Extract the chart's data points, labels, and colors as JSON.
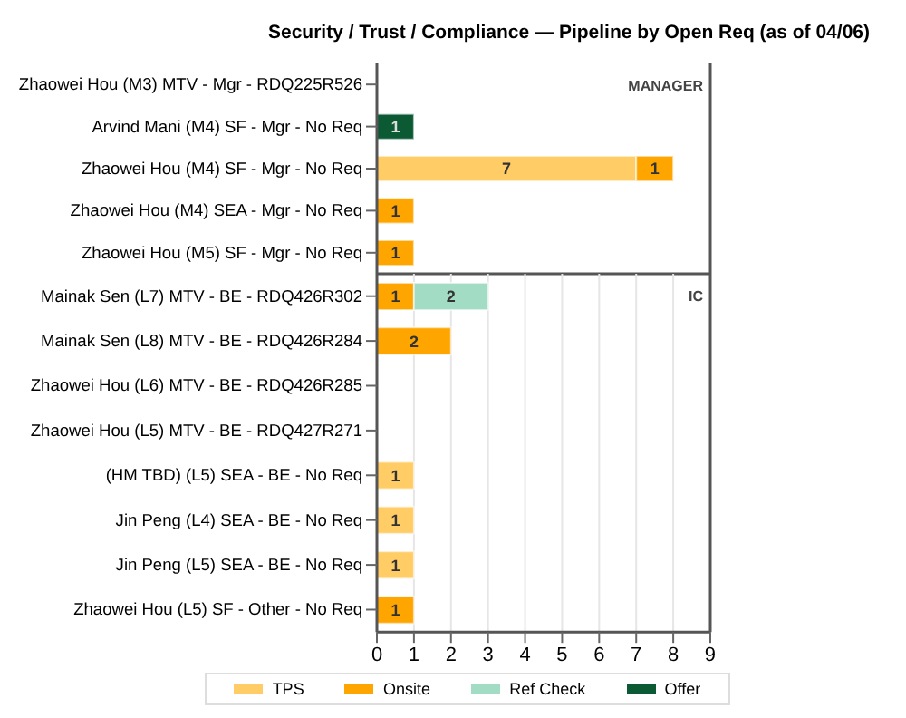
{
  "chart_data": [
    {
      "type": "bar",
      "orientation": "horizontal",
      "stacked": true,
      "title": "Security / Trust / Compliance — Pipeline by Open Req (as of 04/06)",
      "categories": [
        "Zhaowei Hou (M3) MTV - Mgr - RDQ225R526",
        "Arvind Mani (M4) SF - Mgr - No Req",
        "Zhaowei Hou (M4) SF - Mgr - No Req",
        "Zhaowei Hou (M4) SEA - Mgr - No Req",
        "Zhaowei Hou (M5) SF - Mgr - No Req"
      ],
      "series": [
        {
          "color": "#ffcc66",
          "values": [
            null,
            null,
            7,
            null,
            null
          ]
        },
        {
          "color": "#ffa500",
          "values": [
            null,
            null,
            1,
            1,
            1
          ]
        },
        {
          "color": "#a3dcc5",
          "values": [
            null,
            null,
            null,
            null,
            null
          ]
        },
        {
          "color": "#0b5a34",
          "values": [
            null,
            1,
            null,
            null,
            null
          ]
        }
      ],
      "xlim": [
        0,
        9
      ],
      "xticks": [
        0,
        1,
        2,
        3,
        4,
        5,
        6,
        7,
        8,
        9
      ],
      "tick_labels": "y",
      "grid": "x",
      "data_labels": true,
      "annotations": [
        "MANAGER"
      ]
    },
    {
      "type": "bar",
      "orientation": "horizontal",
      "stacked": true,
      "categories": [
        "Mainak Sen (L7) MTV - BE - RDQ426R302",
        "Mainak Sen (L8) MTV - BE - RDQ426R284",
        "Zhaowei Hou (L6) MTV - BE - RDQ426R285",
        "Zhaowei Hou (L5) MTV - BE - RDQ427R271",
        "(HM TBD) (L5) SEA - BE - No Req",
        "Jin Peng (L4) SEA - BE - No Req",
        "Jin Peng (L5) SEA - BE - No Req",
        "Zhaowei Hou (L5) SF - Other - No Req"
      ],
      "series": [
        {
          "name": "TPS",
          "color": "#ffcc66",
          "values": [
            null,
            null,
            null,
            null,
            1,
            1,
            1,
            null
          ]
        },
        {
          "name": "Onsite",
          "color": "#ffa500",
          "values": [
            1,
            2,
            null,
            null,
            null,
            null,
            null,
            1
          ]
        },
        {
          "name": "Ref Check",
          "color": "#a3dcc5",
          "values": [
            2,
            null,
            null,
            null,
            null,
            null,
            null,
            null
          ]
        },
        {
          "name": "Offer",
          "color": "#0b5a34",
          "values": [
            null,
            null,
            null,
            null,
            null,
            null,
            null,
            null
          ]
        }
      ],
      "xlim": [
        0,
        9
      ],
      "xticks": [
        0,
        1,
        2,
        3,
        4,
        5,
        6,
        7,
        8,
        9
      ],
      "grid": "x",
      "data_labels": true,
      "legend": "bottom",
      "annotations": [
        "IC"
      ]
    }
  ]
}
